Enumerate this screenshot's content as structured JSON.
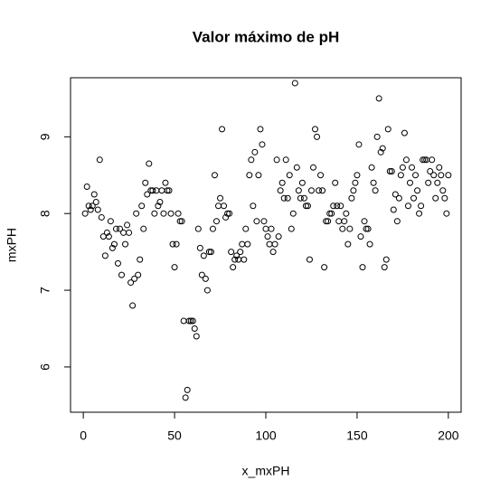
{
  "chart_data": {
    "type": "scatter",
    "title": "Valor máximo de pH",
    "x_label": "x_mxPH",
    "y_label": "mxPH",
    "color": "#000000",
    "x": [
      1,
      2,
      3,
      4,
      5,
      6,
      7,
      8,
      9,
      10,
      11,
      12,
      13,
      14,
      15,
      16,
      17,
      18,
      19,
      20,
      21,
      22,
      23,
      24,
      25,
      26,
      27,
      28,
      29,
      30,
      31,
      32,
      33,
      34,
      35,
      36,
      37,
      38,
      39,
      40,
      41,
      42,
      43,
      44,
      45,
      46,
      47,
      48,
      49,
      50,
      51,
      52,
      53,
      54,
      55,
      56,
      57,
      58,
      59,
      60,
      61,
      62,
      63,
      64,
      65,
      66,
      67,
      68,
      69,
      70,
      71,
      72,
      73,
      74,
      75,
      76,
      77,
      78,
      79,
      80,
      81,
      82,
      83,
      84,
      85,
      86,
      87,
      88,
      89,
      90,
      91,
      92,
      93,
      94,
      95,
      96,
      97,
      98,
      99,
      100,
      101,
      102,
      103,
      104,
      105,
      106,
      107,
      108,
      109,
      110,
      111,
      112,
      113,
      114,
      115,
      116,
      117,
      118,
      119,
      120,
      121,
      122,
      123,
      124,
      125,
      126,
      127,
      128,
      129,
      130,
      131,
      132,
      133,
      134,
      135,
      136,
      137,
      138,
      139,
      140,
      141,
      142,
      143,
      144,
      145,
      146,
      147,
      148,
      149,
      150,
      151,
      152,
      153,
      154,
      155,
      156,
      157,
      158,
      159,
      160,
      161,
      162,
      163,
      164,
      165,
      166,
      167,
      168,
      169,
      170,
      171,
      172,
      173,
      174,
      175,
      176,
      177,
      178,
      179,
      180,
      181,
      182,
      183,
      184,
      185,
      186,
      187,
      188,
      189,
      190,
      191,
      192,
      193,
      194,
      195,
      196,
      197,
      198,
      199,
      200
    ],
    "values": [
      8.0,
      8.35,
      8.1,
      8.05,
      8.1,
      8.25,
      8.15,
      8.05,
      8.7,
      7.95,
      7.7,
      7.45,
      7.75,
      7.7,
      7.9,
      7.55,
      7.6,
      7.8,
      7.35,
      7.8,
      7.2,
      7.75,
      7.6,
      7.85,
      7.75,
      7.1,
      6.8,
      7.15,
      8.0,
      7.2,
      7.4,
      8.1,
      7.8,
      8.4,
      8.25,
      8.65,
      8.3,
      8.3,
      8.0,
      8.3,
      8.1,
      8.15,
      8.3,
      8.0,
      8.4,
      8.3,
      8.3,
      8.0,
      7.6,
      7.3,
      7.6,
      8.0,
      7.9,
      7.9,
      6.6,
      5.6,
      5.7,
      6.6,
      6.6,
      6.6,
      6.5,
      6.4,
      7.8,
      7.55,
      7.2,
      7.45,
      7.15,
      7.0,
      7.5,
      7.5,
      7.8,
      8.5,
      7.9,
      8.1,
      8.2,
      9.1,
      8.1,
      7.95,
      8.0,
      8.0,
      7.5,
      7.3,
      7.4,
      7.45,
      7.4,
      7.5,
      7.6,
      7.4,
      7.8,
      7.6,
      8.5,
      8.7,
      8.1,
      8.8,
      7.9,
      8.5,
      9.1,
      8.9,
      7.9,
      7.8,
      7.7,
      7.6,
      7.8,
      7.5,
      7.6,
      8.7,
      7.7,
      8.3,
      8.4,
      8.2,
      8.7,
      8.2,
      8.5,
      7.8,
      8.0,
      9.7,
      8.6,
      8.3,
      8.2,
      8.4,
      8.2,
      8.1,
      8.1,
      7.4,
      8.3,
      8.6,
      9.1,
      9.0,
      8.3,
      8.5,
      8.3,
      7.3,
      7.9,
      7.9,
      8.0,
      8.0,
      8.1,
      8.4,
      8.1,
      7.9,
      8.1,
      7.8,
      7.9,
      8.0,
      7.6,
      7.8,
      8.2,
      8.3,
      8.4,
      8.5,
      8.9,
      7.7,
      7.3,
      7.9,
      7.8,
      7.8,
      7.6,
      8.6,
      8.4,
      8.3,
      9.0,
      9.5,
      8.8,
      8.85,
      7.3,
      7.4,
      9.1,
      8.55,
      8.55,
      8.05,
      8.25,
      7.9,
      8.2,
      8.5,
      8.6,
      9.05,
      8.7,
      8.1,
      8.4,
      8.6,
      8.2,
      8.5,
      8.3,
      8.0,
      8.1,
      8.7,
      8.7,
      8.7,
      8.4,
      8.55,
      8.7,
      8.5,
      8.2,
      8.4,
      8.6,
      8.5,
      8.3,
      8.2,
      8.0,
      8.5
    ],
    "xlim": [
      -7,
      207
    ],
    "ylim": [
      5.41,
      9.77
    ],
    "xticks": [
      0,
      50,
      100,
      150,
      200
    ],
    "yticks": [
      6,
      7,
      8,
      9
    ]
  }
}
